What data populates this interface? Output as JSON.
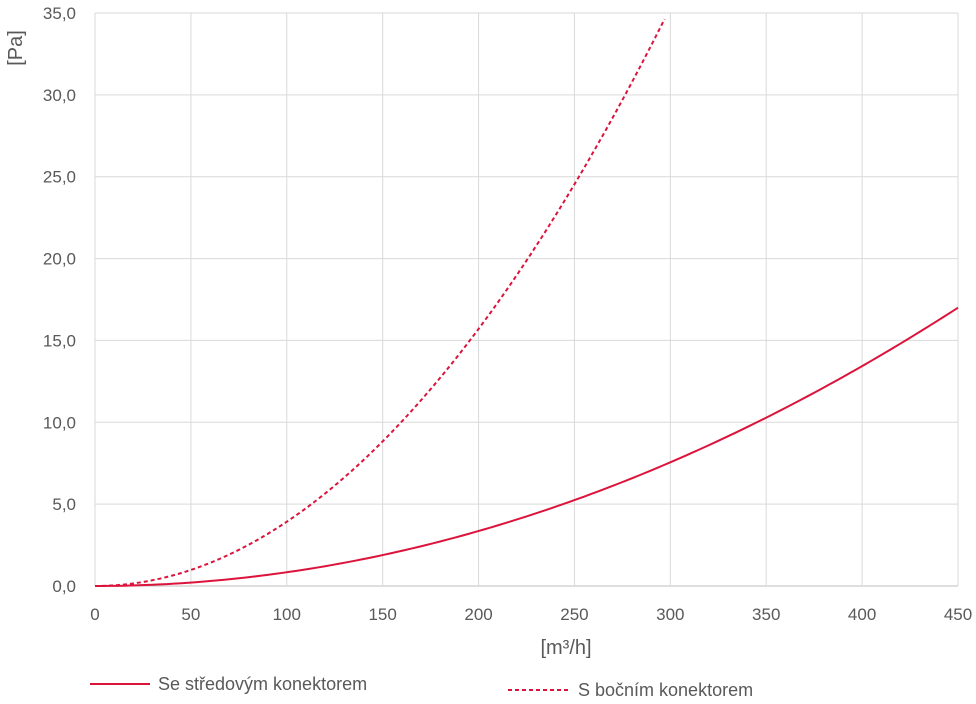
{
  "chart_data": {
    "type": "line",
    "xlabel": "[m³/h]",
    "ylabel": "[Pa]",
    "xlim": [
      0,
      450
    ],
    "ylim": [
      0,
      35
    ],
    "x_ticks": [
      "0",
      "50",
      "100",
      "150",
      "200",
      "250",
      "300",
      "350",
      "400",
      "450"
    ],
    "y_ticks": [
      "0,0",
      "5,0",
      "10,0",
      "15,0",
      "20,0",
      "25,0",
      "30,0",
      "35,0"
    ],
    "grid": true,
    "legend_position": "bottom",
    "series": [
      {
        "name": "Se středovým konektorem",
        "style": "solid",
        "color": "#dc143c",
        "x": [
          0,
          25,
          50,
          75,
          100,
          125,
          150,
          175,
          200,
          225,
          250,
          275,
          300,
          325,
          350,
          375,
          400,
          425,
          450
        ],
        "y": [
          0,
          0.05,
          0.21,
          0.47,
          0.84,
          1.31,
          1.89,
          2.57,
          3.36,
          4.25,
          5.25,
          6.35,
          7.56,
          8.87,
          10.28,
          11.8,
          13.43,
          15.16,
          17.0
        ]
      },
      {
        "name": "S bočním konektorem",
        "style": "dashed",
        "color": "#dc143c",
        "x": [
          0,
          25,
          50,
          75,
          100,
          125,
          150,
          175,
          200,
          225,
          250,
          275,
          297
        ],
        "y": [
          0,
          0.25,
          0.98,
          2.2,
          3.93,
          6.14,
          8.83,
          12.02,
          15.7,
          19.87,
          24.53,
          29.68,
          34.63
        ]
      }
    ]
  }
}
